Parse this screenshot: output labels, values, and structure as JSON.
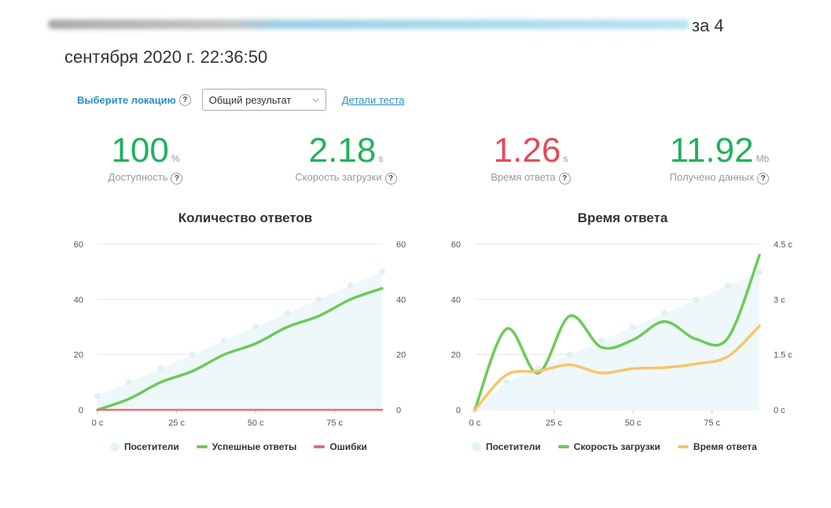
{
  "header": {
    "title_tail": "за 4",
    "title_date": "сентября 2020 г. 22:36:50"
  },
  "location": {
    "label": "Выберите локацию",
    "help": "?",
    "select_value": "Общий результат",
    "details_link": "Детали теста"
  },
  "metrics": [
    {
      "value": "100",
      "unit": "%",
      "label": "Доступность",
      "help": "?",
      "color": "#1fb25a"
    },
    {
      "value": "2.18",
      "unit": "s",
      "label": "Скорость загрузки",
      "help": "?",
      "color": "#1fb25a"
    },
    {
      "value": "1.26",
      "unit": "s",
      "label": "Время ответа",
      "help": "?",
      "color": "#e84a55"
    },
    {
      "value": "11.92",
      "unit": "Mb",
      "label": "Получено данных",
      "help": "?",
      "color": "#1fb25a"
    }
  ],
  "colors": {
    "visitors": "#e4f5f8",
    "visitors_point": "#dff1f5",
    "green": "#6ccb56",
    "red": "#e96b78",
    "orange": "#f7c56b",
    "grid": "#e6e6e6"
  },
  "chart_data": [
    {
      "type": "area",
      "title": "Количество ответов",
      "x": [
        0,
        10,
        20,
        30,
        40,
        50,
        60,
        70,
        80,
        90
      ],
      "x_tick_labels": [
        "0 с",
        "25 с",
        "50 с",
        "75 с"
      ],
      "x_ticks": [
        0,
        25,
        50,
        75
      ],
      "xlim": [
        0,
        90
      ],
      "ylim_left": [
        0,
        60
      ],
      "y_ticks_left": [
        "0",
        "20",
        "40",
        "60"
      ],
      "ylim_right": [
        0,
        60
      ],
      "y_ticks_right": [
        "0",
        "20",
        "40",
        "60"
      ],
      "grid": true,
      "series": [
        {
          "name": "Посетители",
          "kind": "area",
          "axis": "left",
          "values": [
            5,
            10,
            15,
            20,
            25,
            30,
            35,
            40,
            45,
            50
          ]
        },
        {
          "name": "Успешные ответы",
          "kind": "line",
          "axis": "left",
          "values": [
            0,
            4,
            10,
            14,
            20,
            24,
            30,
            34,
            40,
            44
          ]
        },
        {
          "name": "Ошибки",
          "kind": "line",
          "axis": "left",
          "values": [
            0,
            0,
            0,
            0,
            0,
            0,
            0,
            0,
            0,
            0
          ]
        }
      ]
    },
    {
      "type": "area",
      "title": "Время ответа",
      "x": [
        0,
        10,
        20,
        30,
        40,
        50,
        60,
        70,
        80,
        90
      ],
      "x_tick_labels": [
        "0 с",
        "25 с",
        "50 с",
        "75 с"
      ],
      "x_ticks": [
        0,
        25,
        50,
        75
      ],
      "xlim": [
        0,
        90
      ],
      "ylim_left": [
        0,
        60
      ],
      "y_ticks_left": [
        "0",
        "20",
        "40",
        "60"
      ],
      "ylim_right": [
        0,
        4.5
      ],
      "y_ticks_right": [
        "0 с",
        "1.5 с",
        "3 с",
        "4.5 с"
      ],
      "grid": true,
      "series": [
        {
          "name": "Посетители",
          "kind": "area",
          "axis": "left",
          "values": [
            0,
            10,
            15,
            20,
            25,
            30,
            35,
            40,
            45,
            50
          ]
        },
        {
          "name": "Скорость загрузки",
          "kind": "line",
          "axis": "right",
          "values": [
            0,
            2.2,
            1.0,
            2.55,
            1.7,
            1.9,
            2.4,
            1.92,
            1.95,
            4.2
          ]
        },
        {
          "name": "Время ответа",
          "kind": "line",
          "axis": "right",
          "values": [
            0,
            0.95,
            1.05,
            1.22,
            1.0,
            1.12,
            1.15,
            1.25,
            1.45,
            2.28
          ]
        }
      ]
    }
  ]
}
